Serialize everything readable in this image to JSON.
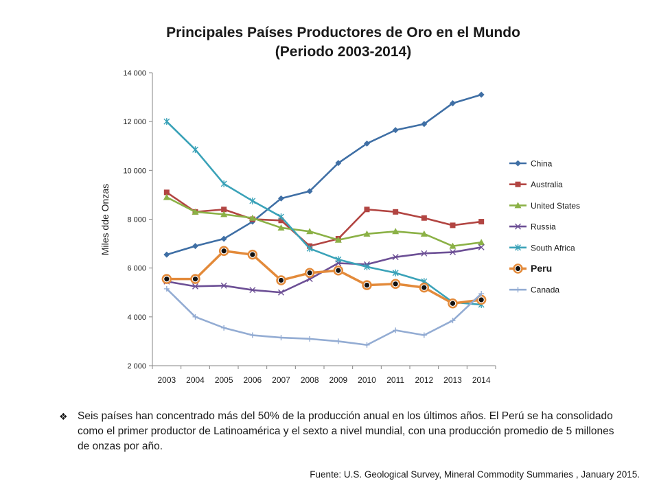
{
  "chart_data": {
    "type": "line",
    "title": [
      "Principales Países Productores de Oro en el Mundo",
      "(Periodo 2003-2014)"
    ],
    "xlabel": "",
    "ylabel": "Miles dde Onzas",
    "ylim": [
      2000,
      14000
    ],
    "yticks": [
      2000,
      4000,
      6000,
      8000,
      10000,
      12000,
      14000
    ],
    "ytick_labels": [
      "2 000",
      "4 000",
      "6 000",
      "8 000",
      "10 000",
      "12 000",
      "14 000"
    ],
    "categories": [
      "2003",
      "2004",
      "2005",
      "2006",
      "2007",
      "2008",
      "2009",
      "2010",
      "2011",
      "2012",
      "2013",
      "2014"
    ],
    "grid": false,
    "legend_position": "right",
    "series": [
      {
        "name": "China",
        "color": "#3f6fa5",
        "marker": "diamond",
        "values": [
          6550,
          6900,
          7200,
          7900,
          8850,
          9150,
          10300,
          11100,
          11650,
          11900,
          12750,
          13100
        ]
      },
      {
        "name": "Australia",
        "color": "#b24542",
        "marker": "square",
        "values": [
          9100,
          8300,
          8400,
          8000,
          7950,
          6900,
          7200,
          8400,
          8300,
          8050,
          7750,
          7900
        ]
      },
      {
        "name": "United States",
        "color": "#8bb146",
        "marker": "triangle",
        "values": [
          8900,
          8300,
          8200,
          8050,
          7650,
          7500,
          7150,
          7400,
          7500,
          7400,
          6900,
          7050
        ]
      },
      {
        "name": "Russia",
        "color": "#6c4f95",
        "marker": "x",
        "values": [
          5450,
          5250,
          5280,
          5100,
          5000,
          5550,
          6200,
          6150,
          6450,
          6600,
          6650,
          6850
        ]
      },
      {
        "name": "South Africa",
        "color": "#3aa2b8",
        "marker": "asterisk",
        "values": [
          12000,
          10850,
          9450,
          8750,
          8100,
          6800,
          6350,
          6050,
          5800,
          5450,
          4600,
          4500
        ]
      },
      {
        "name": "Peru",
        "color": "#e38a3a",
        "marker": "dot-circle",
        "bold_legend": true,
        "values": [
          5550,
          5550,
          6700,
          6550,
          5500,
          5800,
          5900,
          5300,
          5350,
          5200,
          4550,
          4700
        ]
      },
      {
        "name": "Canada",
        "color": "#93acd3",
        "marker": "plus",
        "values": [
          5150,
          4000,
          3550,
          3250,
          3150,
          3100,
          3000,
          2850,
          3450,
          3250,
          3850,
          4950
        ]
      }
    ]
  },
  "note": {
    "bullet": "❖",
    "text": "Seis países han concentrado más del 50% de la producción anual en los últimos años. El Perú se ha consolidado como el primer productor de Latinoamérica y el sexto a nivel mundial, con una producción promedio de 5 millones de onzas por año."
  },
  "source": "Fuente: U.S. Geological Survey, Mineral Commodity Summaries , January 2015."
}
